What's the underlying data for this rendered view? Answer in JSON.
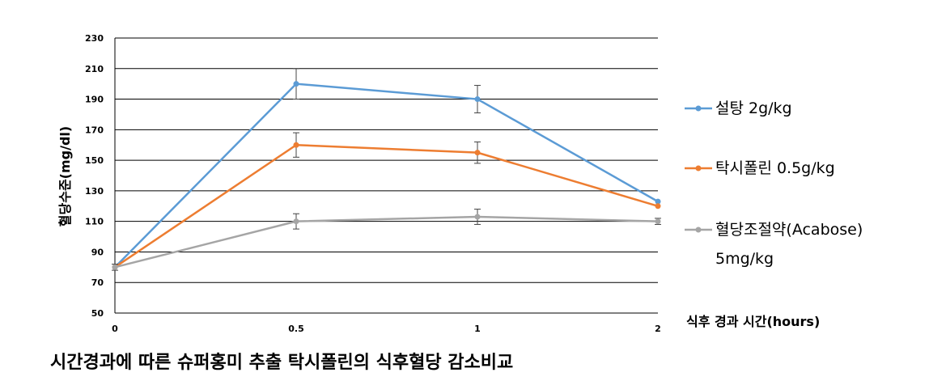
{
  "chart_data": {
    "type": "line",
    "title": "",
    "caption": "시간경과에 따른 슈퍼홍미 추출 탁시폴린의 식후혈당 감소비교",
    "xlabel": "식후 경과 시간(hours)",
    "ylabel": "혈당수준(mg/dl)",
    "categories": [
      "0",
      "0.5",
      "1",
      "2"
    ],
    "ylim": [
      50,
      230
    ],
    "yticks": [
      50,
      70,
      90,
      110,
      130,
      150,
      170,
      190,
      210,
      230
    ],
    "grid": true,
    "legend_position": "right",
    "series": [
      {
        "name": "설탕 2g/kg",
        "color": "#5B9BD5",
        "values": [
          80,
          200,
          190,
          123
        ],
        "errors": [
          0,
          10,
          9,
          0
        ]
      },
      {
        "name": "탁시폴린 0.5g/kg",
        "color": "#ED7D31",
        "values": [
          80,
          160,
          155,
          120
        ],
        "errors": [
          0,
          8,
          7,
          0
        ]
      },
      {
        "name": "혈당조절약(Acabose)",
        "name_line2": "5mg/kg",
        "color": "#A5A5A5",
        "values": [
          80,
          110,
          113,
          110
        ],
        "errors": [
          2,
          5,
          5,
          2
        ]
      }
    ]
  }
}
